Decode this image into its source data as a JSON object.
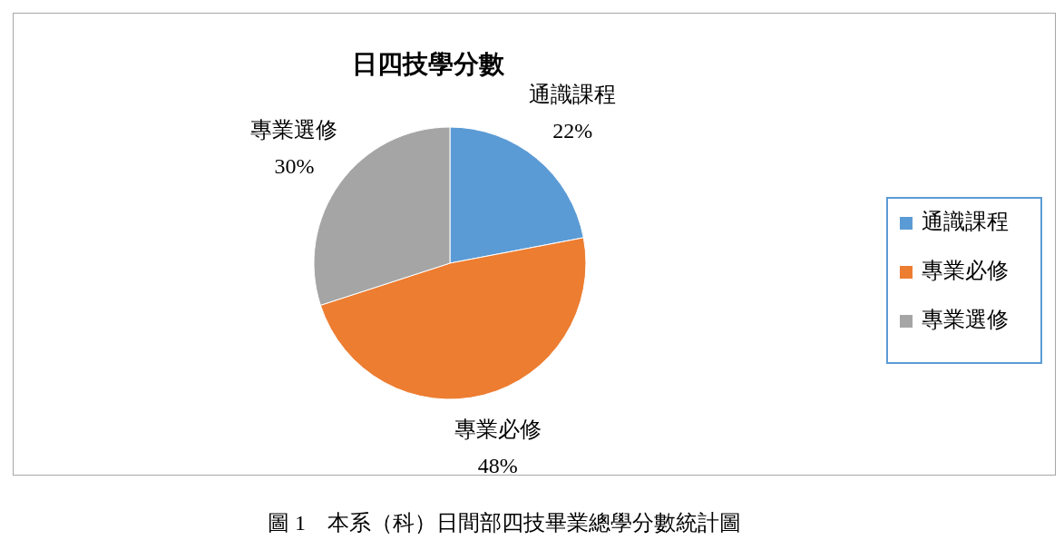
{
  "chart_data": {
    "type": "pie",
    "title": "日四技學分數",
    "categories": [
      "通識課程",
      "專業必修",
      "專業選修"
    ],
    "values": [
      22,
      48,
      30
    ],
    "colors": [
      "#5b9bd5",
      "#ed7d31",
      "#a5a5a5"
    ],
    "value_labels": [
      "22%",
      "48%",
      "30%"
    ],
    "legend": "right",
    "annotations": [
      "圖 1　本系（科）日間部四技畢業總學分數統計圖"
    ]
  }
}
